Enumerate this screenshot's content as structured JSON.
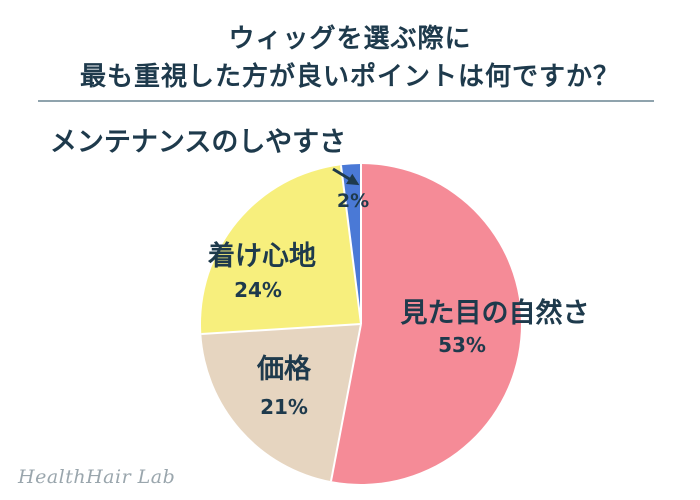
{
  "page": {
    "title_line1": "ウィッグを選ぶ際に",
    "title_line2": "最も重視した方が良いポイントは何ですか？",
    "watermark": "HealthHair Lab"
  },
  "colors": {
    "text": "#1e3a4c",
    "rule": "#8fa3ad",
    "watermark": "#9aa6ad"
  },
  "chart_data": {
    "type": "pie",
    "title": "ウィッグを選ぶ際に 最も重視した方が良いポイントは何ですか？",
    "start": "12 o'clock",
    "direction": "clockwise",
    "legend": "none",
    "slices": [
      {
        "label": "見た目の自然さ",
        "value": 53,
        "value_label": "53%",
        "color": "#f58b97"
      },
      {
        "label": "価格",
        "value": 21,
        "value_label": "21%",
        "color": "#e6d5c0"
      },
      {
        "label": "着け心地",
        "value": 24,
        "value_label": "24%",
        "color": "#f7ef7d"
      },
      {
        "label": "メンテナンスのしやすさ",
        "value": 2,
        "value_label": "2%",
        "color": "#4a79d6"
      }
    ]
  }
}
